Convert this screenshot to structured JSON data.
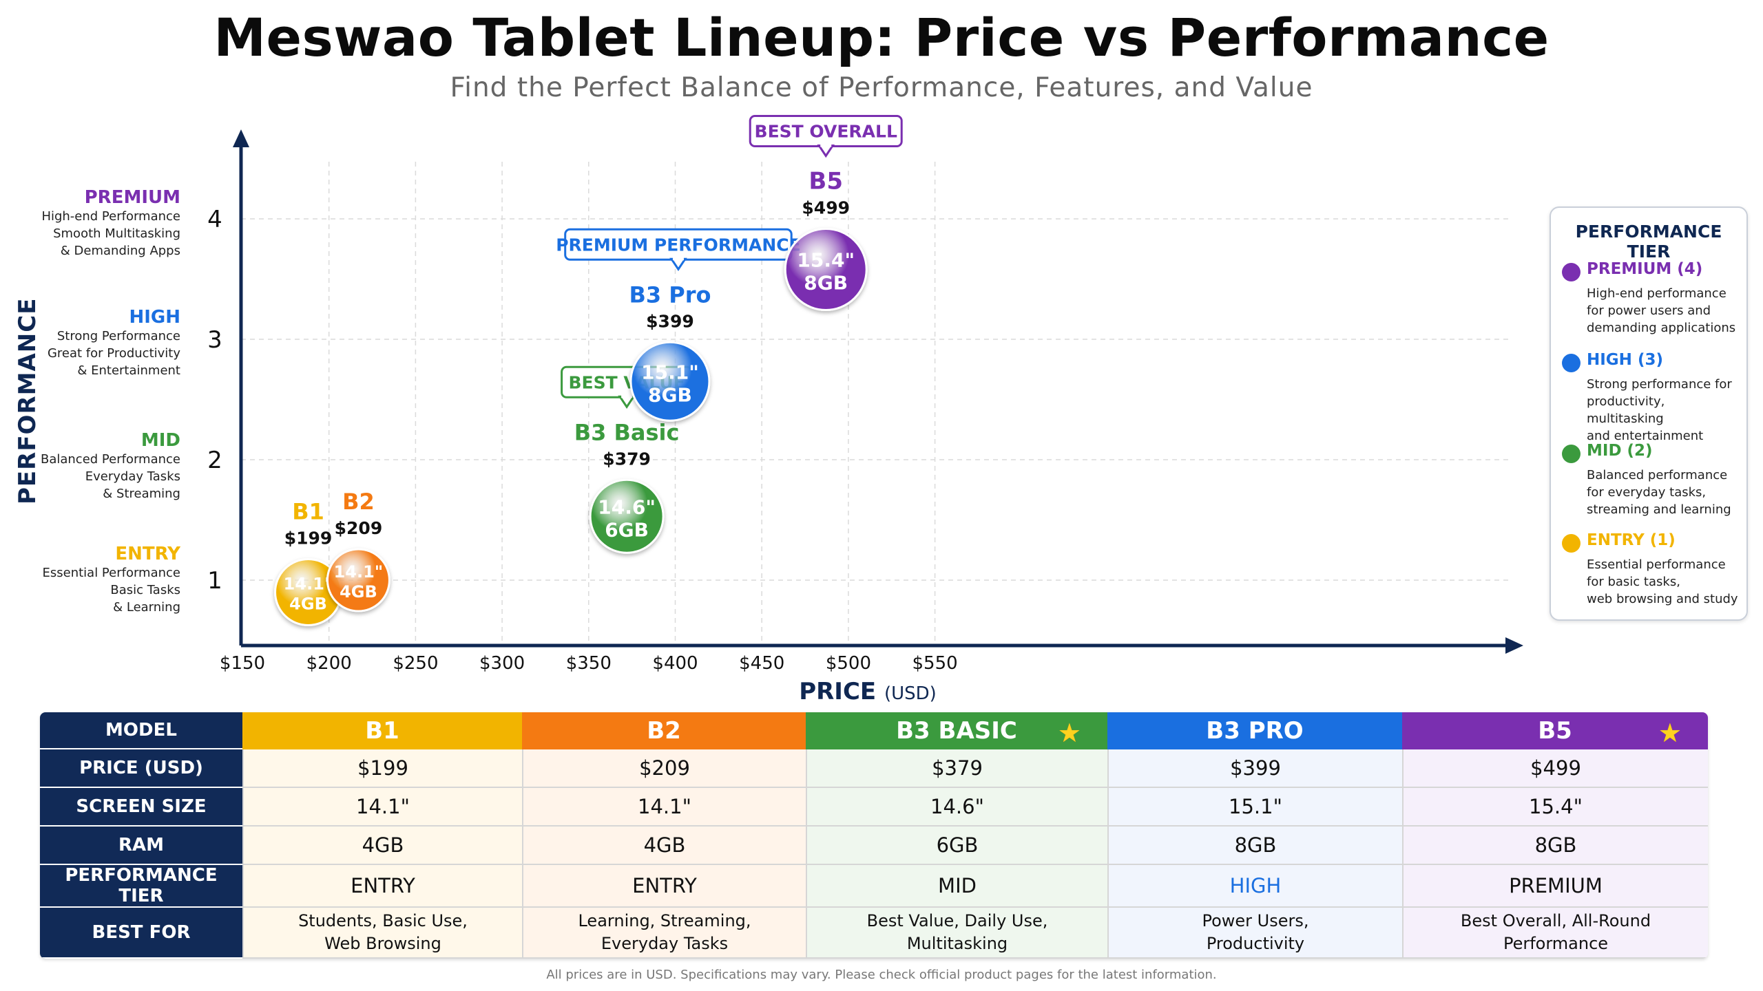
{
  "header": {
    "title": "Meswao Tablet Lineup: Price vs Performance",
    "subtitle": "Find the Perfect Balance of Performance, Features, and Value"
  },
  "colors": {
    "entry": "#f2b400",
    "mid": "#3b9a3e",
    "high": "#1a6fe0",
    "premium": "#7a2fb0",
    "b2": "#f47a12",
    "navy": "#0f2752"
  },
  "tiers": [
    {
      "name": "PREMIUM",
      "desc": "High-end Performance\nSmooth Multitasking\n& Demanding Apps",
      "color": "#7a2fb0"
    },
    {
      "name": "HIGH",
      "desc": "Strong Performance\nGreat for Productivity\n& Entertainment",
      "color": "#1a6fe0"
    },
    {
      "name": "MID",
      "desc": "Balanced Performance\nEveryday Tasks\n& Streaming",
      "color": "#3b9a3e"
    },
    {
      "name": "ENTRY",
      "desc": "Essential Performance\nBasic Tasks\n& Learning",
      "color": "#f2b400"
    }
  ],
  "legend": {
    "title": "PERFORMANCE TIER",
    "items": [
      {
        "name": "PREMIUM (4)",
        "desc": "High-end performance\nfor power users and\ndemanding applications",
        "color": "#7a2fb0"
      },
      {
        "name": "HIGH (3)",
        "desc": "Strong performance for\nproductivity, multitasking\nand entertainment",
        "color": "#1a6fe0"
      },
      {
        "name": "MID (2)",
        "desc": "Balanced performance\nfor everyday tasks,\nstreaming and learning",
        "color": "#3b9a3e"
      },
      {
        "name": "ENTRY (1)",
        "desc": "Essential performance\nfor basic tasks,\nweb browsing and study",
        "color": "#f2b400"
      }
    ]
  },
  "chart_data": {
    "type": "scatter",
    "title": "Meswao Tablet Lineup: Price vs Performance",
    "xlabel": "PRICE",
    "xlabel_unit": "(USD)",
    "ylabel": "PERFORMANCE",
    "xlim": [
      150,
      550
    ],
    "ylim": [
      0.5,
      4.5
    ],
    "xticks": [
      "$150",
      "$200",
      "$250",
      "$300",
      "$350",
      "$400",
      "$450",
      "$500",
      "$550"
    ],
    "xtick_values": [
      150,
      200,
      250,
      300,
      350,
      400,
      450,
      500,
      550
    ],
    "yticks": [
      1,
      2,
      3,
      4
    ],
    "grid": true,
    "legend_position": "right",
    "points": [
      {
        "name": "B1",
        "price": 199,
        "price_label": "$199",
        "performance": 1,
        "plot_x": 188,
        "plot_y": 0.9,
        "screen": "14.1\"",
        "ram": "4GB",
        "color": "#f2b400",
        "badge": ""
      },
      {
        "name": "B2",
        "price": 209,
        "price_label": "$209",
        "performance": 1,
        "plot_x": 217,
        "plot_y": 1.0,
        "screen": "14.1\"",
        "ram": "4GB",
        "color": "#f47a12",
        "badge": ""
      },
      {
        "name": "B3 Basic",
        "price": 379,
        "price_label": "$379",
        "performance": 2,
        "plot_x": 372,
        "plot_y": 1.53,
        "screen": "14.6\"",
        "ram": "6GB",
        "color": "#3b9a3e",
        "badge": "BEST VALUE"
      },
      {
        "name": "B3 Pro",
        "price": 399,
        "price_label": "$399",
        "performance": 3,
        "plot_x": 397,
        "plot_y": 2.65,
        "screen": "15.1\"",
        "ram": "8GB",
        "color": "#1a6fe0",
        "badge": "PREMIUM PERFORMANCE"
      },
      {
        "name": "B5",
        "price": 499,
        "price_label": "$499",
        "performance": 4,
        "plot_x": 487,
        "plot_y": 3.58,
        "screen": "15.4\"",
        "ram": "8GB",
        "color": "#7a2fb0",
        "badge": "BEST OVERALL"
      }
    ]
  },
  "table": {
    "corner": "MODEL",
    "columns": [
      {
        "label": "B1",
        "color": "#f2b400",
        "bg": "#fff8ea",
        "star": false
      },
      {
        "label": "B2",
        "color": "#f47a12",
        "bg": "#fff4ea",
        "star": false
      },
      {
        "label": "B3 BASIC",
        "color": "#3b9a3e",
        "bg": "#eff7ee",
        "star": true
      },
      {
        "label": "B3 PRO",
        "color": "#1a6fe0",
        "bg": "#f1f5fd",
        "star": false
      },
      {
        "label": "B5",
        "color": "#7a2fb0",
        "bg": "#f6f0fb",
        "star": true
      }
    ],
    "rows": [
      {
        "label": "PRICE (USD)",
        "values": [
          "$199",
          "$209",
          "$379",
          "$399",
          "$499"
        ]
      },
      {
        "label": "SCREEN SIZE",
        "values": [
          "14.1\"",
          "14.1\"",
          "14.6\"",
          "15.1\"",
          "15.4\""
        ]
      },
      {
        "label": "RAM",
        "values": [
          "4GB",
          "4GB",
          "6GB",
          "8GB",
          "8GB"
        ]
      },
      {
        "label": "PERFORMANCE TIER",
        "values": [
          "ENTRY",
          "ENTRY",
          "MID",
          "HIGH",
          "PREMIUM"
        ]
      },
      {
        "label": "BEST FOR",
        "values": [
          "Students, Basic Use,\nWeb Browsing",
          "Learning, Streaming,\nEveryday Tasks",
          "Best Value, Daily Use,\nMultitasking",
          "Power Users,\nProductivity",
          "Best Overall, All-Round\nPerformance"
        ]
      }
    ],
    "star_icon": "star-icon"
  },
  "footnote": "All prices are in USD. Specifications may vary. Please check official product pages for the latest information."
}
